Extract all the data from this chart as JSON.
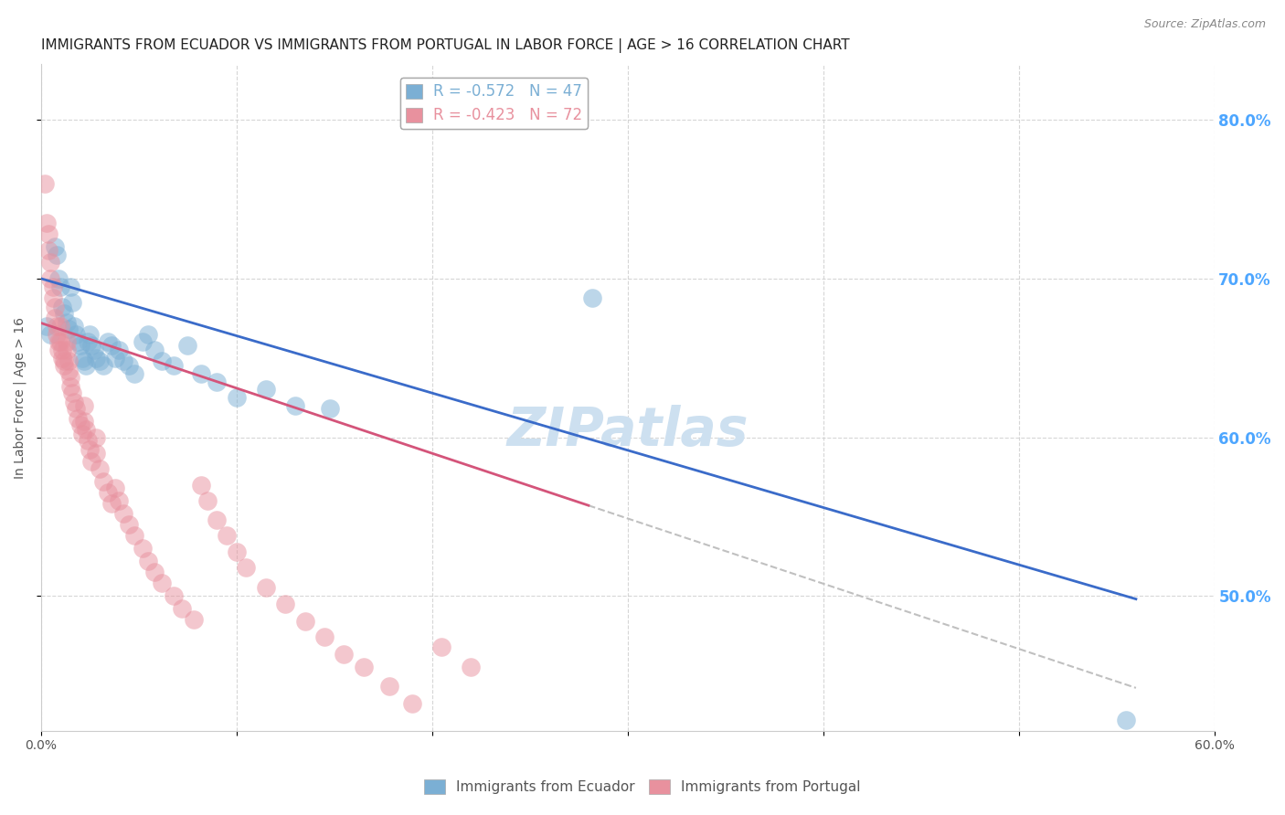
{
  "title": "IMMIGRANTS FROM ECUADOR VS IMMIGRANTS FROM PORTUGAL IN LABOR FORCE | AGE > 16 CORRELATION CHART",
  "source": "Source: ZipAtlas.com",
  "ylabel": "In Labor Force | Age > 16",
  "right_ytick_labels": [
    "80.0%",
    "70.0%",
    "60.0%",
    "50.0%"
  ],
  "right_ytick_values": [
    0.8,
    0.7,
    0.6,
    0.5
  ],
  "xlim": [
    0.0,
    0.6
  ],
  "ylim": [
    0.415,
    0.835
  ],
  "watermark": "ZIPatlas",
  "legend_entries": [
    {
      "label": "R = -0.572   N = 47",
      "color": "#7bafd4"
    },
    {
      "label": "R = -0.423   N = 72",
      "color": "#e8919e"
    }
  ],
  "ecuador_color": "#7bafd4",
  "portugal_color": "#e8919e",
  "ecuador_line_color": "#3a6bc9",
  "portugal_line_color": "#d4547a",
  "dashed_line_color": "#c0c0c0",
  "ecuador_scatter": [
    [
      0.003,
      0.67
    ],
    [
      0.005,
      0.665
    ],
    [
      0.007,
      0.72
    ],
    [
      0.008,
      0.715
    ],
    [
      0.009,
      0.7
    ],
    [
      0.01,
      0.695
    ],
    [
      0.011,
      0.682
    ],
    [
      0.012,
      0.678
    ],
    [
      0.013,
      0.672
    ],
    [
      0.014,
      0.668
    ],
    [
      0.015,
      0.695
    ],
    [
      0.016,
      0.685
    ],
    [
      0.017,
      0.67
    ],
    [
      0.018,
      0.665
    ],
    [
      0.019,
      0.66
    ],
    [
      0.02,
      0.658
    ],
    [
      0.021,
      0.65
    ],
    [
      0.022,
      0.648
    ],
    [
      0.023,
      0.645
    ],
    [
      0.024,
      0.66
    ],
    [
      0.025,
      0.665
    ],
    [
      0.026,
      0.658
    ],
    [
      0.027,
      0.655
    ],
    [
      0.028,
      0.65
    ],
    [
      0.03,
      0.648
    ],
    [
      0.032,
      0.645
    ],
    [
      0.034,
      0.66
    ],
    [
      0.036,
      0.658
    ],
    [
      0.038,
      0.65
    ],
    [
      0.04,
      0.655
    ],
    [
      0.042,
      0.648
    ],
    [
      0.045,
      0.645
    ],
    [
      0.048,
      0.64
    ],
    [
      0.052,
      0.66
    ],
    [
      0.055,
      0.665
    ],
    [
      0.058,
      0.655
    ],
    [
      0.062,
      0.648
    ],
    [
      0.068,
      0.645
    ],
    [
      0.075,
      0.658
    ],
    [
      0.082,
      0.64
    ],
    [
      0.09,
      0.635
    ],
    [
      0.1,
      0.625
    ],
    [
      0.115,
      0.63
    ],
    [
      0.13,
      0.62
    ],
    [
      0.148,
      0.618
    ],
    [
      0.282,
      0.688
    ],
    [
      0.555,
      0.422
    ]
  ],
  "portugal_scatter": [
    [
      0.002,
      0.76
    ],
    [
      0.003,
      0.735
    ],
    [
      0.004,
      0.728
    ],
    [
      0.004,
      0.718
    ],
    [
      0.005,
      0.71
    ],
    [
      0.005,
      0.7
    ],
    [
      0.006,
      0.695
    ],
    [
      0.006,
      0.688
    ],
    [
      0.007,
      0.682
    ],
    [
      0.007,
      0.675
    ],
    [
      0.008,
      0.67
    ],
    [
      0.008,
      0.665
    ],
    [
      0.009,
      0.66
    ],
    [
      0.009,
      0.655
    ],
    [
      0.01,
      0.67
    ],
    [
      0.01,
      0.66
    ],
    [
      0.011,
      0.655
    ],
    [
      0.011,
      0.65
    ],
    [
      0.012,
      0.648
    ],
    [
      0.012,
      0.645
    ],
    [
      0.013,
      0.66
    ],
    [
      0.013,
      0.655
    ],
    [
      0.014,
      0.648
    ],
    [
      0.014,
      0.642
    ],
    [
      0.015,
      0.638
    ],
    [
      0.015,
      0.632
    ],
    [
      0.016,
      0.628
    ],
    [
      0.017,
      0.622
    ],
    [
      0.018,
      0.618
    ],
    [
      0.019,
      0.612
    ],
    [
      0.02,
      0.608
    ],
    [
      0.021,
      0.602
    ],
    [
      0.022,
      0.62
    ],
    [
      0.022,
      0.61
    ],
    [
      0.023,
      0.605
    ],
    [
      0.024,
      0.598
    ],
    [
      0.025,
      0.592
    ],
    [
      0.026,
      0.585
    ],
    [
      0.028,
      0.6
    ],
    [
      0.028,
      0.59
    ],
    [
      0.03,
      0.58
    ],
    [
      0.032,
      0.572
    ],
    [
      0.034,
      0.565
    ],
    [
      0.036,
      0.558
    ],
    [
      0.038,
      0.568
    ],
    [
      0.04,
      0.56
    ],
    [
      0.042,
      0.552
    ],
    [
      0.045,
      0.545
    ],
    [
      0.048,
      0.538
    ],
    [
      0.052,
      0.53
    ],
    [
      0.055,
      0.522
    ],
    [
      0.058,
      0.515
    ],
    [
      0.062,
      0.508
    ],
    [
      0.068,
      0.5
    ],
    [
      0.072,
      0.492
    ],
    [
      0.078,
      0.485
    ],
    [
      0.082,
      0.57
    ],
    [
      0.085,
      0.56
    ],
    [
      0.09,
      0.548
    ],
    [
      0.095,
      0.538
    ],
    [
      0.1,
      0.528
    ],
    [
      0.105,
      0.518
    ],
    [
      0.115,
      0.505
    ],
    [
      0.125,
      0.495
    ],
    [
      0.135,
      0.484
    ],
    [
      0.145,
      0.474
    ],
    [
      0.155,
      0.463
    ],
    [
      0.165,
      0.455
    ],
    [
      0.178,
      0.443
    ],
    [
      0.19,
      0.432
    ],
    [
      0.205,
      0.468
    ],
    [
      0.22,
      0.455
    ]
  ],
  "ecuador_line": {
    "x0": 0.0,
    "y0": 0.7,
    "x1": 0.56,
    "y1": 0.498
  },
  "portugal_line": {
    "x0": 0.0,
    "y0": 0.672,
    "x1": 0.28,
    "y1": 0.557
  },
  "dashed_line": {
    "x0": 0.28,
    "y0": 0.557,
    "x1": 0.56,
    "y1": 0.442
  },
  "background_color": "#ffffff",
  "grid_color": "#cccccc",
  "title_fontsize": 11,
  "axis_label_fontsize": 10,
  "tick_fontsize": 10,
  "legend_fontsize": 11,
  "watermark_fontsize": 42,
  "watermark_color": "#cde0f0",
  "right_axis_color": "#4da6ff"
}
